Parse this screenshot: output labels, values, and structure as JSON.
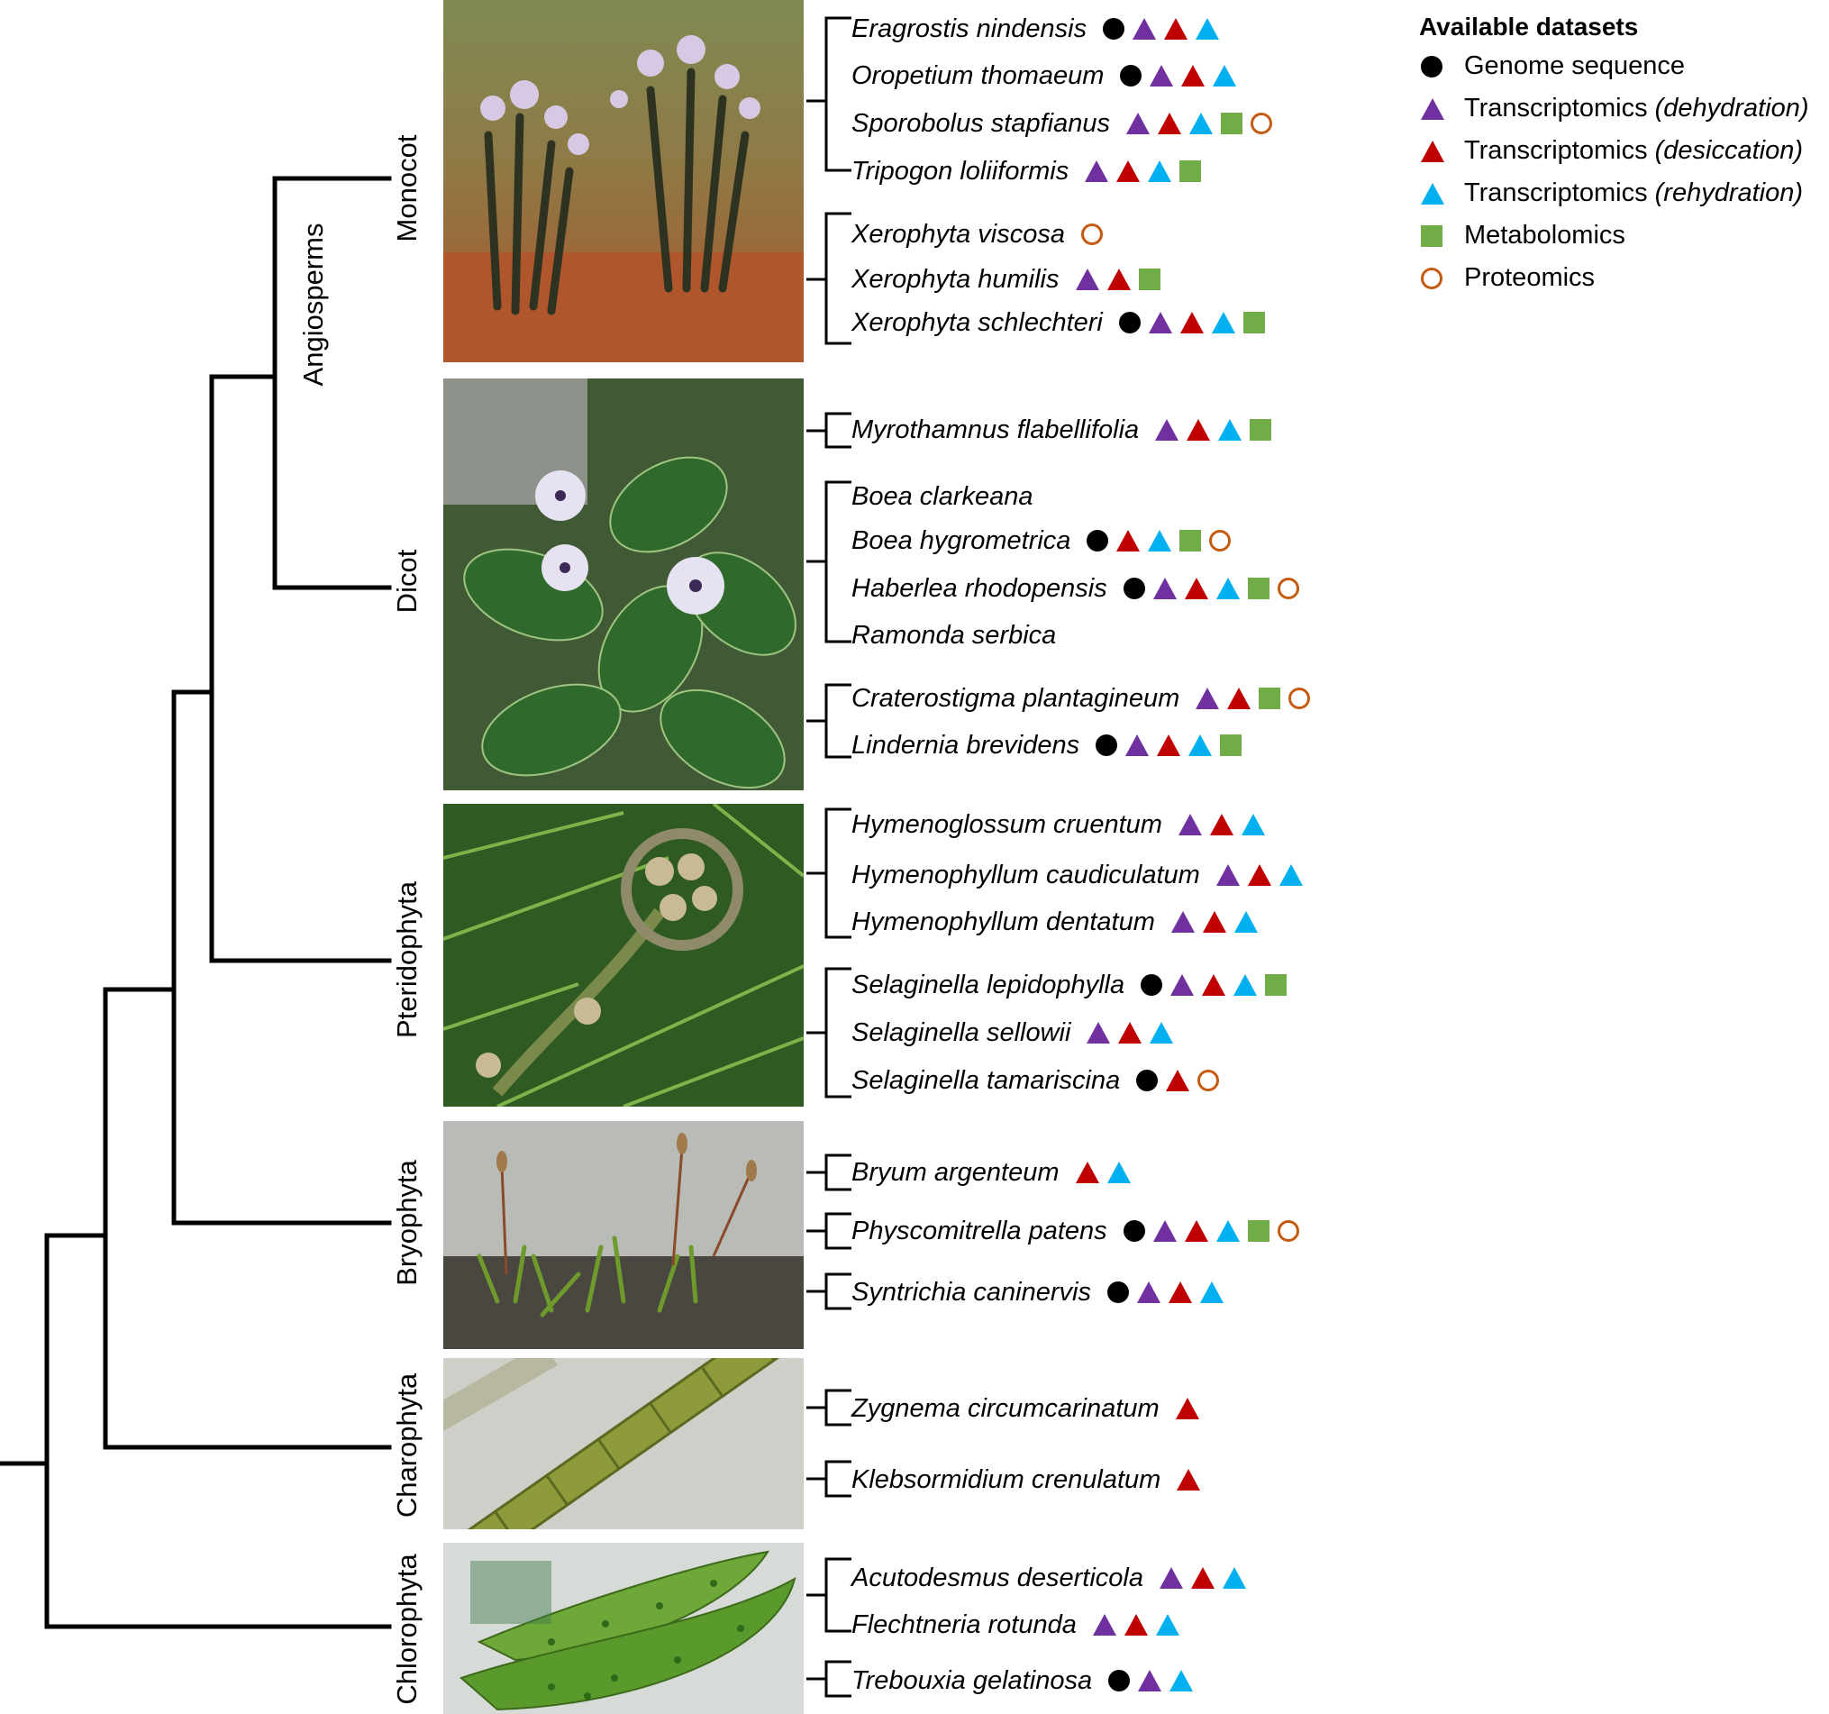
{
  "legend": {
    "title": "Available datasets",
    "items": [
      {
        "symbol": "dot",
        "text": "Genome sequence",
        "qualifier": ""
      },
      {
        "symbol": "tri-purple",
        "text": "Transcriptomics ",
        "qualifier": "(dehydration)"
      },
      {
        "symbol": "tri-red",
        "text": "Transcriptomics ",
        "qualifier": "(desiccation)"
      },
      {
        "symbol": "tri-blue",
        "text": "Transcriptomics ",
        "qualifier": "(rehydration)"
      },
      {
        "symbol": "sq",
        "text": "Metabolomics",
        "qualifier": ""
      },
      {
        "symbol": "ring",
        "text": "Proteomics",
        "qualifier": ""
      }
    ]
  },
  "colors": {
    "genome": "#000000",
    "dehydration": "#7030a0",
    "desiccation": "#c00000",
    "rehydration": "#00b0f0",
    "metabolomics": "#70ad47",
    "proteomics": "#c55a11"
  },
  "clades": {
    "angiosperms": "Angiosperms",
    "monocot": "Monocot",
    "dicot": "Dicot",
    "pteridophyta": "Pteridophyta",
    "bryophyta": "Bryophyta",
    "charophyta": "Charophyta",
    "chlorophyta": "Chlorophyta"
  },
  "photos": {
    "monocot": "xerophyta-plants-photo",
    "dicot": "boea-flowering-plant-photo",
    "pteridophyta": "fern-fiddlehead-photo",
    "bryophyta": "moss-sporophytes-photo",
    "charophyta": "filamentous-alga-micrograph",
    "chlorophyta": "green-alga-micrograph"
  },
  "species": [
    {
      "name": "Eragrostis nindensis",
      "marks": [
        "dot",
        "tri-purple",
        "tri-red",
        "tri-blue"
      ]
    },
    {
      "name": "Oropetium thomaeum",
      "marks": [
        "dot",
        "tri-purple",
        "tri-red",
        "tri-blue"
      ]
    },
    {
      "name": "Sporobolus stapfianus",
      "marks": [
        "tri-purple",
        "tri-red",
        "tri-blue",
        "sq",
        "ring"
      ]
    },
    {
      "name": "Tripogon loliiformis",
      "marks": [
        "tri-purple",
        "tri-red",
        "tri-blue",
        "sq"
      ]
    },
    {
      "name": "Xerophyta viscosa",
      "marks": [
        "ring"
      ]
    },
    {
      "name": "Xerophyta humilis",
      "marks": [
        "tri-purple",
        "tri-red",
        "sq"
      ]
    },
    {
      "name": "Xerophyta schlechteri",
      "marks": [
        "dot",
        "tri-purple",
        "tri-red",
        "tri-blue",
        "sq"
      ]
    },
    {
      "name": "Myrothamnus flabellifolia",
      "marks": [
        "tri-purple",
        "tri-red",
        "tri-blue",
        "sq"
      ]
    },
    {
      "name": "Boea clarkeana",
      "marks": []
    },
    {
      "name": "Boea hygrometrica",
      "marks": [
        "dot",
        "tri-red",
        "tri-blue",
        "sq",
        "ring"
      ]
    },
    {
      "name": "Haberlea rhodopensis",
      "marks": [
        "dot",
        "tri-purple",
        "tri-red",
        "tri-blue",
        "sq",
        "ring"
      ]
    },
    {
      "name": "Ramonda serbica",
      "marks": []
    },
    {
      "name": "Craterostigma plantagineum",
      "marks": [
        "tri-purple",
        "tri-red",
        "sq",
        "ring"
      ]
    },
    {
      "name": "Lindernia brevidens",
      "marks": [
        "dot",
        "tri-purple",
        "tri-red",
        "tri-blue",
        "sq"
      ]
    },
    {
      "name": "Hymenoglossum cruentum",
      "marks": [
        "tri-purple",
        "tri-red",
        "tri-blue"
      ]
    },
    {
      "name": "Hymenophyllum caudiculatum",
      "marks": [
        "tri-purple",
        "tri-red",
        "tri-blue"
      ]
    },
    {
      "name": "Hymenophyllum dentatum",
      "marks": [
        "tri-purple",
        "tri-red",
        "tri-blue"
      ]
    },
    {
      "name": "Selaginella lepidophylla",
      "marks": [
        "dot",
        "tri-purple",
        "tri-red",
        "tri-blue",
        "sq"
      ]
    },
    {
      "name": "Selaginella sellowii",
      "marks": [
        "tri-purple",
        "tri-red",
        "tri-blue"
      ]
    },
    {
      "name": "Selaginella tamariscina",
      "marks": [
        "dot",
        "tri-red",
        "ring"
      ]
    },
    {
      "name": "Bryum argenteum",
      "marks": [
        "tri-red",
        "tri-blue"
      ]
    },
    {
      "name": "Physcomitrella patens",
      "marks": [
        "dot",
        "tri-purple",
        "tri-red",
        "tri-blue",
        "sq",
        "ring"
      ]
    },
    {
      "name": "Syntrichia caninervis",
      "marks": [
        "dot",
        "tri-purple",
        "tri-red",
        "tri-blue"
      ]
    },
    {
      "name": "Zygnema circumcarinatum",
      "marks": [
        "tri-red"
      ]
    },
    {
      "name": "Klebsormidium crenulatum",
      "marks": [
        "tri-red"
      ]
    },
    {
      "name": "Acutodesmus deserticola",
      "marks": [
        "tri-purple",
        "tri-red",
        "tri-blue"
      ]
    },
    {
      "name": "Flechtneria rotunda",
      "marks": [
        "tri-purple",
        "tri-red",
        "tri-blue"
      ]
    },
    {
      "name": "Trebouxia gelatinosa",
      "marks": [
        "dot",
        "tri-purple",
        "tri-blue"
      ]
    }
  ]
}
